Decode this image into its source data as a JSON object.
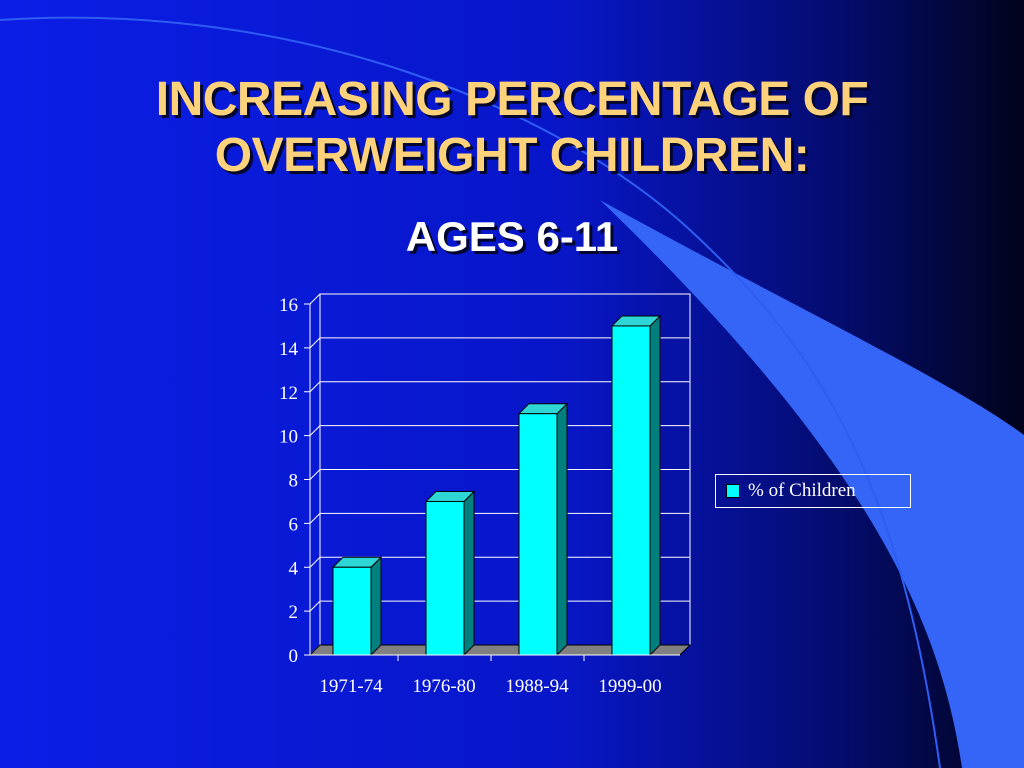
{
  "slide": {
    "title_line1": "INCREASING PERCENTAGE OF",
    "title_line2": "OVERWEIGHT CHILDREN:",
    "subtitle": "AGES 6-11"
  },
  "colors": {
    "bar_front": "#00ffff",
    "bar_side": "#007f7f",
    "bar_top": "#2fd6d6",
    "title": "#fed27a",
    "floor": "#808080"
  },
  "chart_data": {
    "type": "bar",
    "categories": [
      "1971-74",
      "1976-80",
      "1988-94",
      "1999-00"
    ],
    "series": [
      {
        "name": "%  of Children",
        "values": [
          4,
          7,
          11,
          15
        ]
      }
    ],
    "ylim": [
      0,
      16
    ],
    "yticks": [
      0,
      2,
      4,
      6,
      8,
      10,
      12,
      14,
      16
    ],
    "xlabel": "",
    "ylabel": "",
    "grid": true,
    "legend": "right",
    "style": "3d"
  }
}
